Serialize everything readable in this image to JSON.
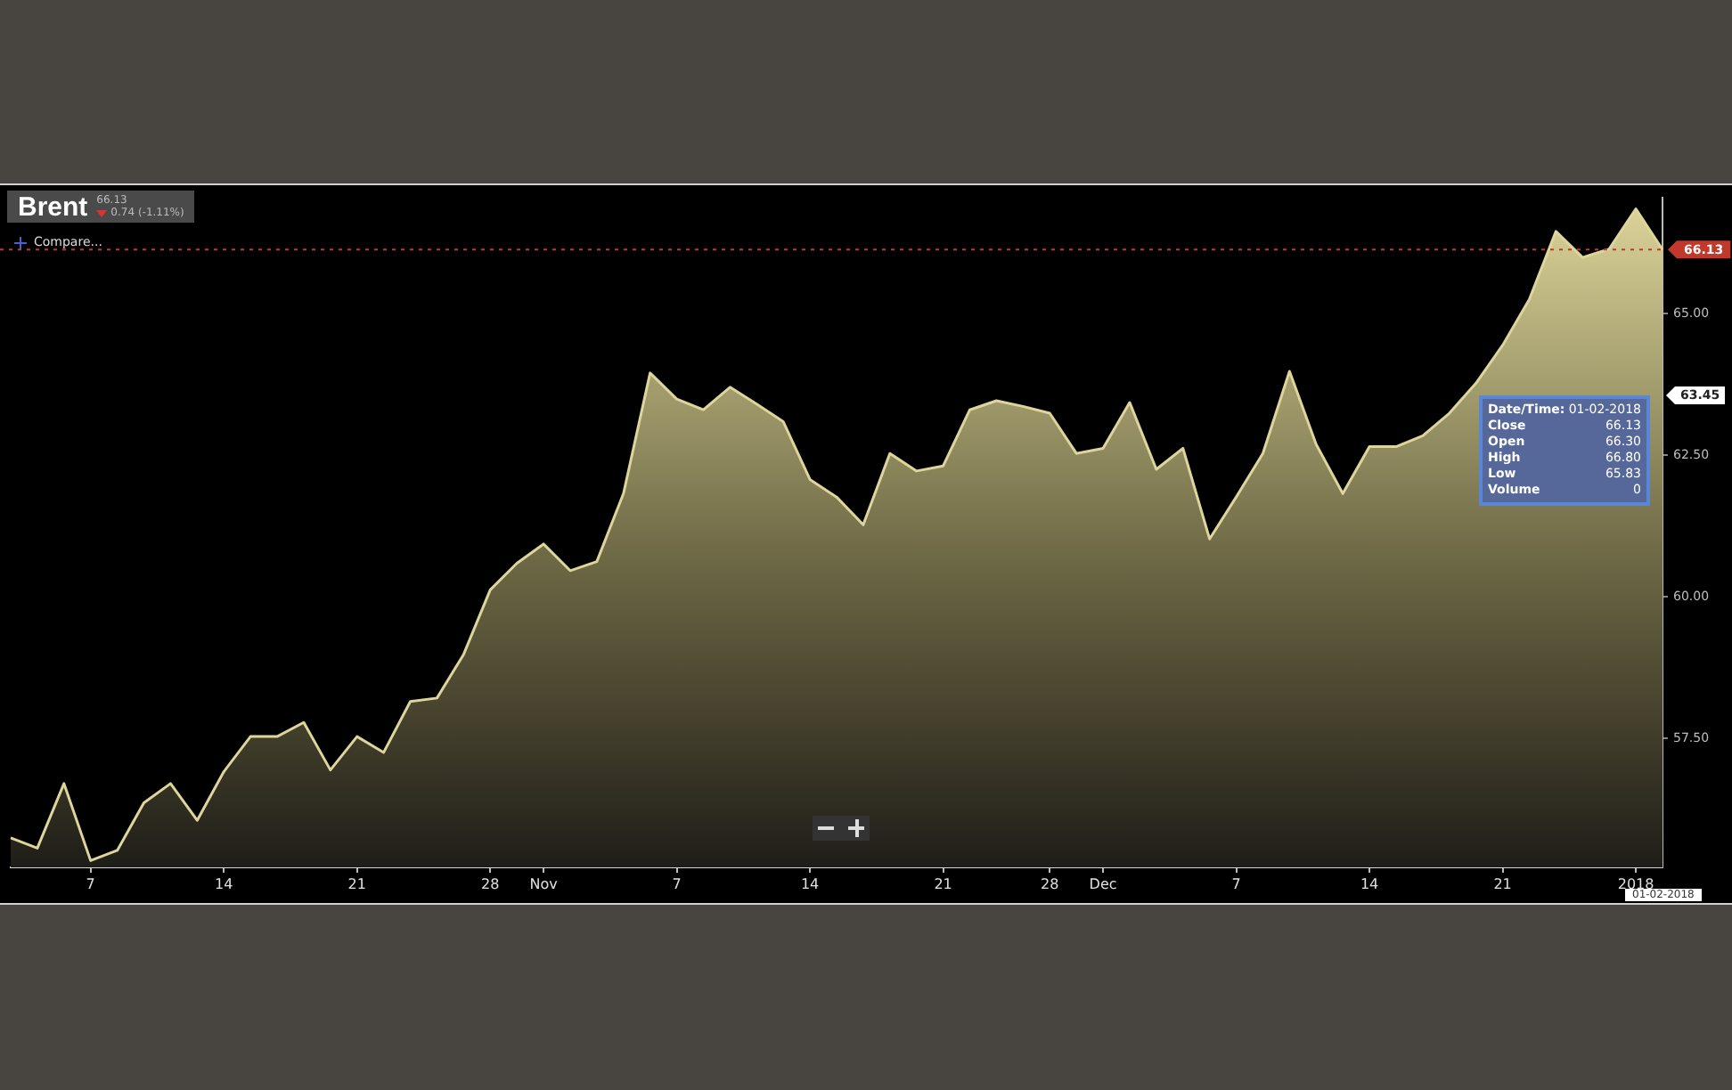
{
  "chart_data": {
    "type": "area",
    "title": "Brent",
    "categories": [
      null,
      null,
      null,
      "7",
      null,
      null,
      null,
      null,
      "14",
      null,
      null,
      null,
      null,
      "21",
      null,
      null,
      null,
      null,
      "28",
      null,
      "Nov",
      null,
      null,
      null,
      null,
      "7",
      null,
      null,
      null,
      null,
      "14",
      null,
      null,
      null,
      null,
      "21",
      null,
      null,
      null,
      "28",
      null,
      "Dec",
      null,
      null,
      null,
      null,
      "7",
      null,
      null,
      null,
      null,
      "14",
      null,
      null,
      null,
      null,
      "21",
      null,
      null,
      null,
      null,
      "2018",
      null
    ],
    "series": [
      {
        "color": "#ddd59a",
        "values": [
          55.74,
          55.56,
          56.7,
          55.34,
          55.52,
          56.36,
          56.7,
          56.05,
          56.91,
          57.53,
          57.53,
          57.78,
          56.94,
          57.53,
          57.25,
          58.15,
          58.21,
          58.98,
          60.12,
          60.59,
          60.93,
          60.46,
          60.62,
          61.82,
          63.95,
          63.49,
          63.3,
          63.7,
          63.4,
          63.09,
          62.07,
          61.76,
          61.27,
          62.53,
          62.22,
          62.31,
          63.3,
          63.46,
          63.36,
          63.24,
          62.53,
          62.62,
          63.43,
          62.25,
          62.62,
          61.02,
          61.76,
          62.53,
          63.98,
          62.69,
          61.82,
          62.65,
          62.65,
          62.84,
          63.24,
          63.77,
          64.44,
          65.25,
          66.45,
          65.99,
          66.14,
          66.85,
          66.13
        ]
      }
    ],
    "ylim": [
      55.22,
      67.04
    ],
    "yticks": [
      {
        "value": 57.5,
        "label": "57.50"
      },
      {
        "value": 60,
        "label": "60.00"
      },
      {
        "value": 62.5,
        "label": "62.50"
      },
      {
        "value": 65,
        "label": "65.00"
      }
    ],
    "ref_lines": [
      {
        "axis": "y",
        "value": 66.13,
        "label": "66.13",
        "color": "#c0392b",
        "line_style": "dotted"
      }
    ],
    "annotations": [
      "66.13",
      "0.74 (-1.11%)",
      "Compare...",
      "Date/Time: 01-02-2018",
      "Close 66.13",
      "Open 66.30",
      "High 66.80",
      "Low 65.83",
      "Volume 0",
      "63.45",
      "01-02-2018"
    ],
    "legend": false
  }
}
